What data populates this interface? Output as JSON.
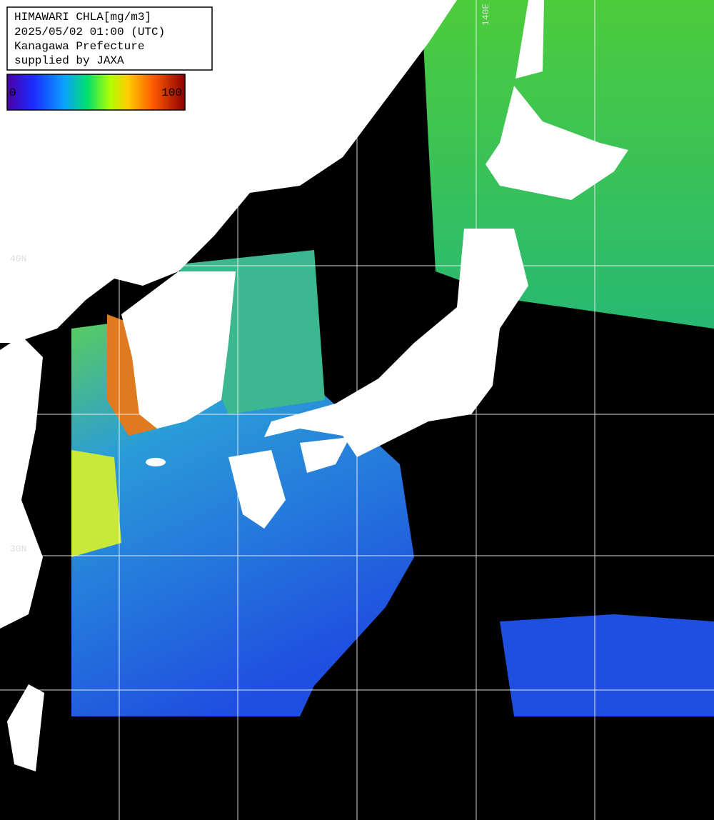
{
  "header": {
    "lines": [
      "HIMAWARI CHLA[mg/m3]",
      "2025/05/02 01:00 (UTC)",
      "Kanagawa Prefecture",
      "supplied by JAXA"
    ]
  },
  "colorbar": {
    "min": 0,
    "max": 100
  },
  "grid_labels": {
    "lat": [
      "40N",
      "30N"
    ],
    "lon": [
      "140E"
    ]
  }
}
